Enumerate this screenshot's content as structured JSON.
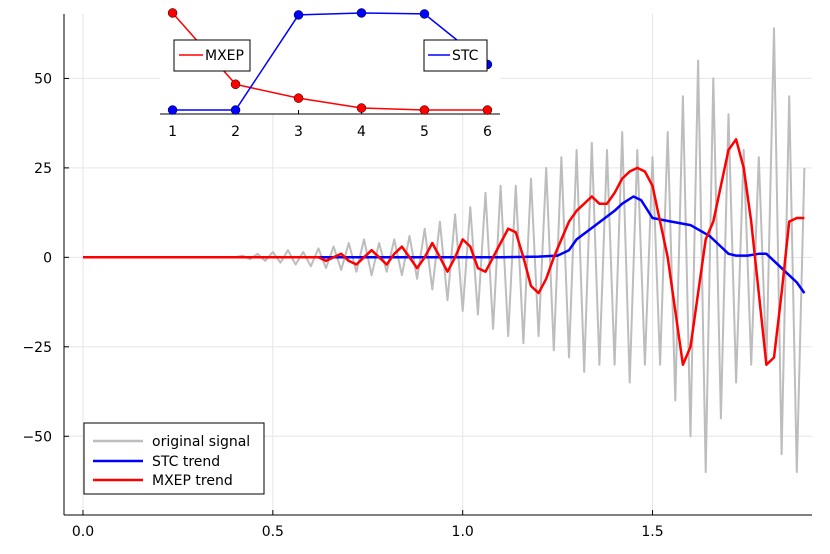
{
  "chart_data": [
    {
      "type": "line",
      "title": "",
      "xlabel": "",
      "ylabel": "",
      "xlim": [
        -0.05,
        1.92
      ],
      "ylim": [
        -72,
        68
      ],
      "xticks": [
        "0.0",
        "0.5",
        "1.0",
        "1.5"
      ],
      "xtick_values": [
        0.0,
        0.5,
        1.0,
        1.5
      ],
      "yticks": [
        "−50",
        "−25",
        "0",
        "25",
        "50"
      ],
      "ytick_values": [
        -50,
        -25,
        0,
        25,
        50
      ],
      "grid": true,
      "legend_placement": "bottom-left",
      "series": [
        {
          "name": "original signal",
          "color": "#bdbdbd",
          "x": [
            0.0,
            0.05,
            0.1,
            0.15,
            0.2,
            0.25,
            0.3,
            0.35,
            0.4,
            0.42,
            0.44,
            0.46,
            0.48,
            0.5,
            0.52,
            0.54,
            0.56,
            0.58,
            0.6,
            0.62,
            0.64,
            0.66,
            0.68,
            0.7,
            0.72,
            0.74,
            0.76,
            0.78,
            0.8,
            0.82,
            0.84,
            0.86,
            0.88,
            0.9,
            0.92,
            0.94,
            0.96,
            0.98,
            1.0,
            1.02,
            1.04,
            1.06,
            1.08,
            1.1,
            1.12,
            1.14,
            1.16,
            1.18,
            1.2,
            1.22,
            1.24,
            1.26,
            1.28,
            1.3,
            1.32,
            1.34,
            1.36,
            1.38,
            1.4,
            1.42,
            1.44,
            1.46,
            1.48,
            1.5,
            1.52,
            1.54,
            1.56,
            1.58,
            1.6,
            1.62,
            1.64,
            1.66,
            1.68,
            1.7,
            1.72,
            1.74,
            1.76,
            1.78,
            1.8,
            1.82,
            1.84,
            1.86,
            1.88,
            1.9
          ],
          "y": [
            0,
            0,
            0,
            0,
            0,
            0,
            0,
            0,
            0,
            0.5,
            -0.5,
            1,
            -1,
            1.5,
            -1.5,
            2,
            -2,
            1.5,
            -2.5,
            2.5,
            -3,
            3,
            -3.5,
            4,
            -4,
            5,
            -5,
            4,
            -4,
            5,
            -5,
            6,
            -6,
            8,
            -9,
            10,
            -12,
            12,
            -15,
            14,
            -16,
            18,
            -20,
            20,
            -22,
            20,
            -24,
            22,
            -22,
            25,
            -26,
            28,
            -28,
            30,
            -32,
            32,
            -30,
            30,
            -30,
            35,
            -35,
            30,
            -30,
            28,
            -30,
            35,
            -40,
            45,
            -50,
            55,
            -60,
            50,
            -45,
            40,
            -35,
            30,
            -30,
            28,
            -30,
            64,
            -55,
            45,
            -60,
            25
          ]
        },
        {
          "name": "STC trend",
          "color": "#0000ff",
          "x": [
            0.0,
            0.2,
            0.4,
            0.6,
            0.8,
            1.0,
            1.1,
            1.2,
            1.25,
            1.28,
            1.3,
            1.35,
            1.4,
            1.42,
            1.45,
            1.47,
            1.5,
            1.55,
            1.6,
            1.65,
            1.68,
            1.7,
            1.72,
            1.75,
            1.78,
            1.8,
            1.82,
            1.85,
            1.88,
            1.9
          ],
          "y": [
            0,
            0,
            0,
            0,
            0,
            0,
            0,
            0.2,
            0.5,
            2,
            5,
            9,
            13,
            15,
            17,
            16,
            11,
            10,
            9,
            6,
            3,
            1,
            0.5,
            0.5,
            1,
            1,
            -1,
            -4,
            -7,
            -10
          ]
        },
        {
          "name": "MXEP trend",
          "color": "#ff0000",
          "x": [
            0.0,
            0.6,
            0.62,
            0.64,
            0.66,
            0.68,
            0.7,
            0.72,
            0.74,
            0.76,
            0.78,
            0.8,
            0.82,
            0.84,
            0.86,
            0.88,
            0.9,
            0.92,
            0.94,
            0.96,
            0.98,
            1.0,
            1.02,
            1.04,
            1.06,
            1.08,
            1.1,
            1.12,
            1.14,
            1.16,
            1.18,
            1.2,
            1.22,
            1.24,
            1.26,
            1.28,
            1.3,
            1.32,
            1.34,
            1.36,
            1.38,
            1.4,
            1.42,
            1.44,
            1.46,
            1.48,
            1.5,
            1.52,
            1.54,
            1.56,
            1.58,
            1.6,
            1.62,
            1.64,
            1.66,
            1.68,
            1.7,
            1.72,
            1.74,
            1.76,
            1.78,
            1.8,
            1.82,
            1.84,
            1.86,
            1.88,
            1.9
          ],
          "y": [
            0,
            0,
            0,
            -1,
            0,
            1,
            -1,
            -2,
            0,
            2,
            0,
            -2,
            1,
            3,
            0,
            -3,
            0,
            4,
            0,
            -4,
            0,
            5,
            3,
            -3,
            -4,
            0,
            4,
            8,
            7,
            0,
            -8,
            -10,
            -6,
            0,
            5,
            10,
            13,
            15,
            17,
            15,
            15,
            18,
            22,
            24,
            25,
            24,
            20,
            10,
            0,
            -15,
            -30,
            -25,
            -10,
            5,
            10,
            20,
            30,
            33,
            25,
            10,
            -10,
            -30,
            -28,
            -10,
            10,
            11,
            11
          ]
        }
      ]
    },
    {
      "type": "line",
      "title": "",
      "xlabel": "",
      "ylabel": "",
      "xticks": [
        "1",
        "2",
        "3",
        "4",
        "5",
        "6"
      ],
      "xtick_values": [
        1,
        2,
        3,
        4,
        5,
        6
      ],
      "xlim": [
        0.8,
        6.2
      ],
      "ylim": [
        0,
        1.05
      ],
      "grid": false,
      "series": [
        {
          "name": "MXEP",
          "color": "#ff0000",
          "x": [
            1,
            2,
            3,
            4,
            5,
            6
          ],
          "y": [
            1.0,
            0.28,
            0.14,
            0.04,
            0.02,
            0.02
          ]
        },
        {
          "name": "STC",
          "color": "#0000ff",
          "x": [
            1,
            2,
            3,
            4,
            5,
            6
          ],
          "y": [
            0.02,
            0.02,
            0.98,
            1.0,
            0.99,
            0.48
          ]
        }
      ]
    }
  ],
  "legend_main": {
    "items": [
      "original signal",
      "STC trend",
      "MXEP trend"
    ]
  },
  "legend_inset": {
    "mxep": "MXEP",
    "stc": "STC"
  }
}
